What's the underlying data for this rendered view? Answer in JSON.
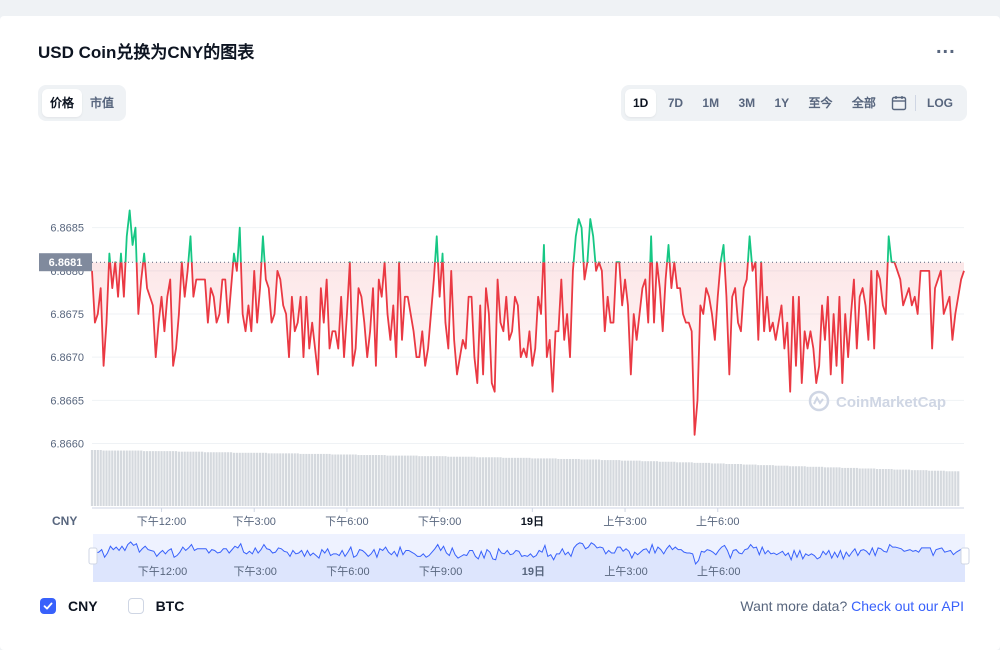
{
  "title": "USD Coin兑换为CNY的图表",
  "more_label": "...",
  "metric_tabs": [
    {
      "label": "价格",
      "active": true
    },
    {
      "label": "市值",
      "active": false
    }
  ],
  "range_tabs": [
    {
      "label": "1D",
      "active": true
    },
    {
      "label": "7D",
      "active": false
    },
    {
      "label": "1M",
      "active": false
    },
    {
      "label": "3M",
      "active": false
    },
    {
      "label": "1Y",
      "active": false
    },
    {
      "label": "至今",
      "active": false
    },
    {
      "label": "全部",
      "active": false
    }
  ],
  "log_label": "LOG",
  "icons": {
    "calendar": "calendar-icon",
    "menu": "more-dots-icon",
    "watermark": "coinmarketcap-logo-icon",
    "check": "check-icon"
  },
  "watermark_text": "CoinMarketCap",
  "legend": [
    {
      "label": "CNY",
      "checked": true
    },
    {
      "label": "BTC",
      "checked": false
    }
  ],
  "more_data_text": "Want more data?",
  "api_link_text": "Check out our API",
  "colors": {
    "up": "#16c784",
    "down": "#ea3943",
    "accent": "#3861fb",
    "volume": "#d5d9de",
    "navigator_fill": "#dde5fd",
    "navigator_line": "#3861fb"
  },
  "chart_data": {
    "type": "line",
    "currency_label": "CNY",
    "current_price_label": "6.8681",
    "baseline": 6.8681,
    "ylim": [
      6.8656,
      6.8694
    ],
    "yticks": [
      6.866,
      6.8665,
      6.867,
      6.8675,
      6.868,
      6.8685
    ],
    "ytick_labels": [
      "6.8660",
      "6.8665",
      "6.8670",
      "6.8675",
      "6.8680",
      "6.8685"
    ],
    "xticks": [
      {
        "label": "下午12:00",
        "index": 24,
        "bold": false
      },
      {
        "label": "下午3:00",
        "index": 56,
        "bold": false
      },
      {
        "label": "下午6:00",
        "index": 88,
        "bold": false
      },
      {
        "label": "下午9:00",
        "index": 120,
        "bold": false
      },
      {
        "label": "19日",
        "index": 152,
        "bold": true
      },
      {
        "label": "上午3:00",
        "index": 184,
        "bold": false
      },
      {
        "label": "上午6:00",
        "index": 216,
        "bold": false
      }
    ],
    "series": [
      {
        "values": [
          6.868,
          6.8674,
          6.8675,
          6.8678,
          6.8669,
          6.8674,
          6.8682,
          6.8678,
          6.8681,
          6.8677,
          6.8682,
          6.8677,
          6.8684,
          6.8687,
          6.8683,
          6.8685,
          6.8675,
          6.8679,
          6.8682,
          6.8678,
          6.8677,
          6.8676,
          6.867,
          6.8674,
          6.8677,
          6.8673,
          6.8677,
          6.8679,
          6.8669,
          6.8671,
          6.8675,
          6.8681,
          6.8677,
          6.868,
          6.8684,
          6.8677,
          6.8679,
          6.8679,
          6.8679,
          6.8679,
          6.8674,
          6.8678,
          6.8677,
          6.8674,
          6.8675,
          6.8679,
          6.8679,
          6.8674,
          6.8678,
          6.8682,
          6.868,
          6.8685,
          6.8675,
          6.8673,
          6.8676,
          6.8673,
          6.868,
          6.8674,
          6.8678,
          6.8684,
          6.8679,
          6.8678,
          6.8674,
          6.8675,
          6.868,
          6.8679,
          6.8676,
          6.8675,
          6.867,
          6.8677,
          6.8673,
          6.8674,
          6.8677,
          6.867,
          6.8677,
          6.8671,
          6.8674,
          6.8671,
          6.8668,
          6.8678,
          6.8674,
          6.8679,
          6.8671,
          6.8673,
          6.8673,
          6.8671,
          6.8677,
          6.867,
          6.8675,
          6.8681,
          6.8669,
          6.8671,
          6.8678,
          6.8677,
          6.8674,
          6.867,
          6.8673,
          6.8678,
          6.8669,
          6.8679,
          6.8677,
          6.8681,
          6.8675,
          6.8672,
          6.8676,
          6.867,
          6.8681,
          6.8672,
          6.8677,
          6.8677,
          6.8675,
          6.8673,
          6.867,
          6.867,
          6.8673,
          6.8669,
          6.8671,
          6.8675,
          6.8679,
          6.8684,
          6.8677,
          6.8682,
          6.8674,
          6.8671,
          6.868,
          6.8672,
          6.8668,
          6.867,
          6.8672,
          6.8671,
          6.8677,
          6.8677,
          6.867,
          6.8667,
          6.8676,
          6.8668,
          6.8678,
          6.8675,
          6.8667,
          6.8666,
          6.8679,
          6.8674,
          6.8673,
          6.8677,
          6.8672,
          6.8673,
          6.8677,
          6.8676,
          6.867,
          6.8671,
          6.867,
          6.8673,
          6.8669,
          6.8671,
          6.8677,
          6.8675,
          6.8683,
          6.867,
          6.8672,
          6.8666,
          6.8673,
          6.8673,
          6.8679,
          6.8672,
          6.8675,
          6.867,
          6.868,
          6.8684,
          6.8686,
          6.8685,
          6.8679,
          6.8681,
          6.8686,
          6.8684,
          6.868,
          6.8681,
          6.868,
          6.8673,
          6.8677,
          6.8674,
          6.8674,
          6.8681,
          6.8681,
          6.8676,
          6.8679,
          6.8676,
          6.8668,
          6.8675,
          6.8672,
          6.8675,
          6.8678,
          6.8679,
          6.8674,
          6.8684,
          6.8674,
          6.8681,
          6.8678,
          6.8673,
          6.8679,
          6.8683,
          6.8678,
          6.8681,
          6.8678,
          6.8678,
          6.8675,
          6.8674,
          6.8674,
          6.8673,
          6.8661,
          6.8665,
          6.8676,
          6.8675,
          6.8678,
          6.8677,
          6.8675,
          6.8672,
          6.8677,
          6.8681,
          6.8683,
          6.8677,
          6.8668,
          6.8677,
          6.8678,
          6.8674,
          6.8673,
          6.8678,
          6.8679,
          6.8684,
          6.868,
          6.8681,
          6.8672,
          6.8681,
          6.8673,
          6.8677,
          6.8673,
          6.8674,
          6.8672,
          6.8674,
          6.8676,
          6.8671,
          6.8674,
          6.8666,
          6.8677,
          6.8669,
          6.8677,
          6.8667,
          6.8673,
          6.8671,
          6.8673,
          6.8671,
          6.8667,
          6.8669,
          6.8676,
          6.8672,
          6.8677,
          6.8668,
          6.8675,
          6.8669,
          6.8677,
          6.8667,
          6.8675,
          6.867,
          6.8675,
          6.8679,
          6.8671,
          6.8677,
          6.8678,
          6.8676,
          6.8672,
          6.868,
          6.8671,
          6.868,
          6.8679,
          6.8676,
          6.8675,
          6.8684,
          6.8681,
          6.8681,
          6.868,
          6.8679,
          6.8676,
          6.8677,
          6.8678,
          6.8676,
          6.8677,
          6.8675,
          6.868,
          6.868,
          6.868,
          6.868,
          6.8671,
          6.8678,
          6.8679,
          6.868,
          6.8675,
          6.8676,
          6.8677,
          6.8672,
          6.8675,
          6.8677,
          6.8679,
          6.868
        ]
      }
    ],
    "volume": [
      1.0,
      1.0,
      1.0,
      1.0,
      0.99,
      0.99,
      0.99,
      0.99,
      0.99,
      0.99,
      0.99,
      0.99,
      0.99,
      0.99,
      0.99,
      0.99,
      0.99,
      0.99,
      0.98,
      0.98,
      0.98,
      0.98,
      0.98,
      0.98,
      0.98,
      0.98,
      0.98,
      0.98,
      0.98,
      0.98,
      0.97,
      0.97,
      0.97,
      0.97,
      0.97,
      0.97,
      0.97,
      0.97,
      0.97,
      0.96,
      0.96,
      0.96,
      0.96,
      0.96,
      0.96,
      0.96,
      0.96,
      0.96,
      0.96,
      0.95,
      0.95,
      0.95,
      0.95,
      0.95,
      0.95,
      0.95,
      0.95,
      0.95,
      0.95,
      0.95,
      0.95,
      0.94,
      0.94,
      0.94,
      0.94,
      0.94,
      0.94,
      0.94,
      0.94,
      0.94,
      0.94,
      0.94,
      0.93,
      0.93,
      0.93,
      0.93,
      0.93,
      0.93,
      0.93,
      0.93,
      0.93,
      0.93,
      0.93,
      0.92,
      0.92,
      0.92,
      0.92,
      0.92,
      0.92,
      0.92,
      0.92,
      0.92,
      0.91,
      0.91,
      0.91,
      0.91,
      0.91,
      0.91,
      0.91,
      0.91,
      0.91,
      0.91,
      0.9,
      0.9,
      0.9,
      0.9,
      0.9,
      0.9,
      0.9,
      0.9,
      0.9,
      0.9,
      0.9,
      0.89,
      0.89,
      0.89,
      0.89,
      0.89,
      0.89,
      0.89,
      0.89,
      0.89,
      0.89,
      0.88,
      0.88,
      0.88,
      0.88,
      0.88,
      0.88,
      0.88,
      0.88,
      0.88,
      0.88,
      0.87,
      0.87,
      0.87,
      0.87,
      0.87,
      0.87,
      0.87,
      0.87,
      0.87,
      0.86,
      0.86,
      0.86,
      0.86,
      0.86,
      0.86,
      0.86,
      0.86,
      0.86,
      0.86,
      0.85,
      0.85,
      0.85,
      0.85,
      0.85,
      0.85,
      0.85,
      0.85,
      0.85,
      0.84,
      0.84,
      0.84,
      0.84,
      0.84,
      0.84,
      0.84,
      0.84,
      0.83,
      0.83,
      0.83,
      0.83,
      0.83,
      0.83,
      0.83,
      0.82,
      0.82,
      0.82,
      0.82,
      0.82,
      0.82,
      0.82,
      0.81,
      0.81,
      0.81,
      0.81,
      0.81,
      0.81,
      0.81,
      0.8,
      0.8,
      0.8,
      0.8,
      0.8,
      0.8,
      0.79,
      0.79,
      0.79,
      0.79,
      0.79,
      0.79,
      0.78,
      0.78,
      0.78,
      0.78,
      0.78,
      0.78,
      0.77,
      0.77,
      0.77,
      0.77,
      0.77,
      0.77,
      0.76,
      0.76,
      0.76,
      0.76,
      0.76,
      0.75,
      0.75,
      0.75,
      0.75,
      0.75,
      0.75,
      0.74,
      0.74,
      0.74,
      0.74,
      0.74,
      0.73,
      0.73,
      0.73,
      0.73,
      0.73,
      0.73,
      0.72,
      0.72,
      0.72,
      0.72,
      0.72,
      0.71,
      0.71,
      0.71,
      0.71,
      0.71,
      0.71,
      0.7,
      0.7,
      0.7,
      0.7,
      0.7,
      0.7,
      0.69,
      0.69,
      0.69,
      0.69,
      0.69,
      0.69,
      0.68,
      0.68,
      0.68,
      0.68,
      0.68,
      0.68,
      0.67,
      0.67,
      0.67,
      0.67,
      0.67,
      0.67,
      0.66,
      0.66,
      0.66,
      0.66,
      0.66,
      0.66,
      0.65,
      0.65,
      0.65,
      0.65,
      0.65,
      0.65,
      0.64,
      0.64,
      0.64,
      0.64,
      0.64,
      0.64,
      0.63,
      0.63,
      0.63,
      0.63,
      0.63,
      0.63,
      0.62,
      0.62,
      0.62,
      0.62,
      0.62
    ]
  }
}
